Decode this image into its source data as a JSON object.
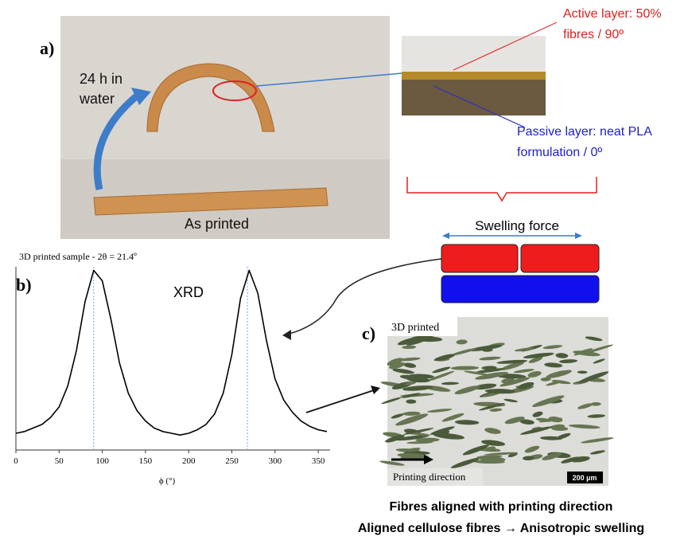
{
  "panel_a": {
    "label": "a)",
    "annotation": [
      "24 h in",
      "water"
    ],
    "caption": "As printed",
    "active_layer": [
      "Active layer: 50%",
      "fibres / 90º"
    ],
    "passive_layer": [
      "Passive layer: neat PLA",
      "formulation / 0º"
    ],
    "swelling_force": "Swelling force"
  },
  "panel_b": {
    "label": "b)",
    "chart_data": {
      "type": "line",
      "title": "3D printed sample - 2θ = 21.4º",
      "annotation": "XRD",
      "xlabel": "ϕ (°)",
      "x": [
        0,
        10,
        20,
        30,
        40,
        50,
        60,
        70,
        80,
        90,
        100,
        110,
        120,
        130,
        140,
        150,
        160,
        170,
        180,
        190,
        200,
        210,
        220,
        230,
        240,
        250,
        260,
        270,
        280,
        290,
        300,
        310,
        320,
        330,
        340,
        350,
        360
      ],
      "values": [
        5,
        6,
        8,
        10,
        14,
        20,
        32,
        52,
        80,
        98,
        92,
        70,
        45,
        28,
        18,
        12,
        8,
        6,
        5,
        4,
        5,
        7,
        10,
        16,
        28,
        50,
        82,
        98,
        85,
        58,
        36,
        24,
        17,
        12,
        9,
        7,
        6
      ],
      "xlim": [
        0,
        360
      ],
      "ylim": [
        0,
        100
      ],
      "xticks": [
        0,
        50,
        100,
        150,
        200,
        250,
        300,
        350
      ],
      "peaks": [
        90,
        268
      ],
      "color": "#000000"
    }
  },
  "panel_c": {
    "label": "c)",
    "image_label": "3D printed",
    "direction": "Printing direction",
    "scale_bar": "200 µm"
  },
  "captions": [
    "Fibres aligned with printing direction",
    "Aligned cellulose fibres → Anisotropic swelling"
  ]
}
